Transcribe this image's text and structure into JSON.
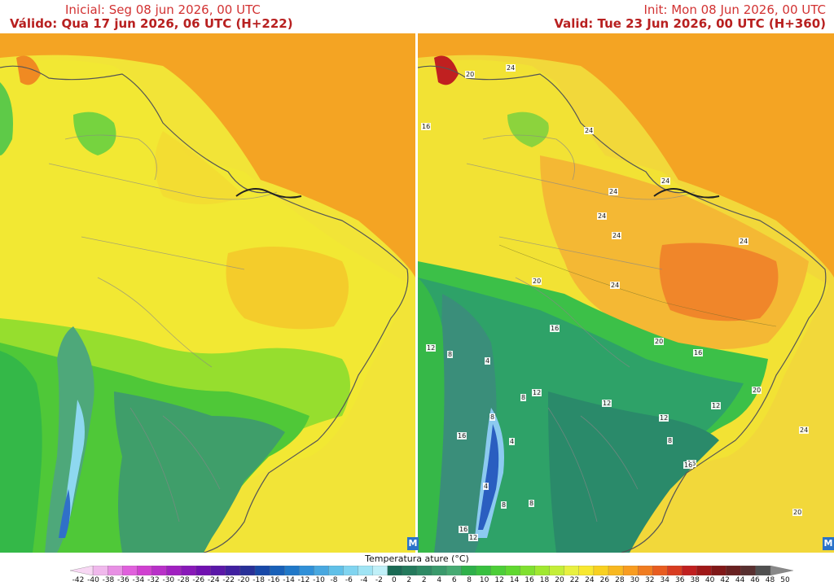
{
  "panels": [
    {
      "line1": "Inicial: Seg 08 jun 2026, 00 UTC",
      "line2": "Válido: Qua 17 jun 2026, 06 UTC (H+222)"
    },
    {
      "line1": "Init: Mon 08 Jun 2026, 00 UTC",
      "line2": "Valid: Tue 23 Jun 2026, 00 UTC (H+360)",
      "contour_labels": [
        "20",
        "24",
        "16",
        "24",
        "24",
        "24",
        "24",
        "24",
        "24",
        "20",
        "24",
        "16",
        "20",
        "16",
        "12",
        "8",
        "4",
        "12",
        "12",
        "8",
        "12",
        "12",
        "16",
        "16",
        "8",
        "8",
        "4",
        "4",
        "8",
        "12",
        "8",
        "16",
        "20",
        "24",
        "20",
        "16"
      ]
    }
  ],
  "legend": {
    "title": "Temperatura ature (°C)",
    "ticks": [
      "-42",
      "-40",
      "-38",
      "-36",
      "-34",
      "-32",
      "-30",
      "-28",
      "-26",
      "-24",
      "-22",
      "-20",
      "-18",
      "-16",
      "-14",
      "-12",
      "-10",
      "-8",
      "-6",
      "-4",
      "-2",
      "0",
      "2",
      "2",
      "4",
      "6",
      "8",
      "10",
      "12",
      "14",
      "16",
      "18",
      "20",
      "22",
      "24",
      "26",
      "28",
      "30",
      "32",
      "34",
      "36",
      "38",
      "40",
      "42",
      "44",
      "46",
      "48",
      "50"
    ],
    "colors": [
      "#f8d8f4",
      "#f0b8ec",
      "#e890e4",
      "#e060dc",
      "#d040d0",
      "#b830c8",
      "#a020c0",
      "#8818b8",
      "#7010b0",
      "#5a18a8",
      "#4020a0",
      "#283098",
      "#1848a8",
      "#1860b8",
      "#2078c8",
      "#3090d8",
      "#48a8e0",
      "#60c0e8",
      "#80d4f0",
      "#a0e4f4",
      "#c0f0f8",
      "#1a6a54",
      "#247a5c",
      "#2e8a64",
      "#3a9a6c",
      "#46aa72",
      "#2eb04a",
      "#38c040",
      "#4cce38",
      "#60d830",
      "#80e030",
      "#a0e830",
      "#c4ee38",
      "#e8f040",
      "#f8e830",
      "#f8d020",
      "#f8b820",
      "#f89c20",
      "#f07c20",
      "#e85c20",
      "#d83c20",
      "#c02020",
      "#a01818",
      "#801818",
      "#682020",
      "#583030",
      "#505050",
      "#888888"
    ]
  }
}
